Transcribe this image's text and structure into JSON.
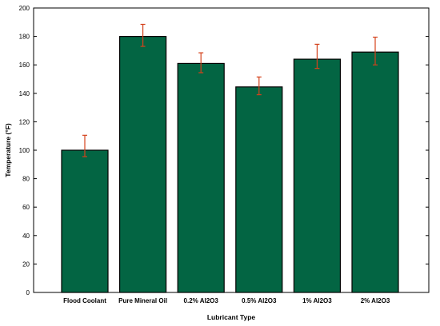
{
  "chart_data": {
    "type": "bar",
    "categories": [
      "Flood Coolant",
      "Pure Mineral Oil",
      "0.2% Al2O3",
      "0.5% Al2O3",
      "1% Al2O3",
      "2% Al2O3"
    ],
    "values": [
      100,
      180,
      161,
      144.5,
      164,
      169
    ],
    "error_low": [
      95.5,
      173,
      154.5,
      139,
      157.5,
      160
    ],
    "error_high": [
      110.5,
      188.5,
      168.5,
      151.5,
      174.5,
      179.5
    ],
    "xlabel": "Lubricant Type",
    "ylabel": "Temperature (°F)",
    "ylim": [
      0,
      200
    ],
    "yticks": [
      "0",
      "20",
      "40",
      "60",
      "80",
      "100",
      "120",
      "140",
      "160",
      "180",
      "200"
    ],
    "grid": false,
    "legend": "none",
    "colors": {
      "bar": "#036543",
      "bar_edge": "#000000",
      "error_bar": "#d4421c"
    }
  }
}
